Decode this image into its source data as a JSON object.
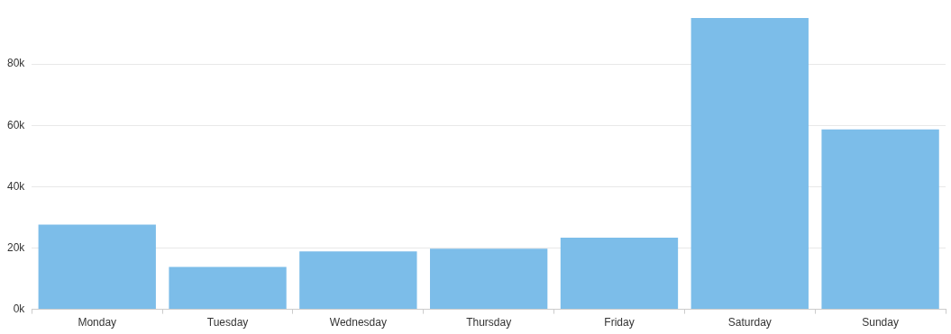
{
  "chart_data": {
    "type": "bar",
    "categories": [
      "Monday",
      "Tuesday",
      "Wednesday",
      "Thursday",
      "Friday",
      "Saturday",
      "Sunday"
    ],
    "values": [
      27600,
      13800,
      18900,
      19800,
      23400,
      95000,
      58700
    ],
    "color": "#7cbde9",
    "ylim": [
      0,
      95000
    ],
    "yticks": [
      {
        "value": 0,
        "label": "0k"
      },
      {
        "value": 20000,
        "label": "20k"
      },
      {
        "value": 40000,
        "label": "40k"
      },
      {
        "value": 60000,
        "label": "60k"
      },
      {
        "value": 80000,
        "label": "80k"
      }
    ],
    "grid": "y",
    "legend": false
  }
}
